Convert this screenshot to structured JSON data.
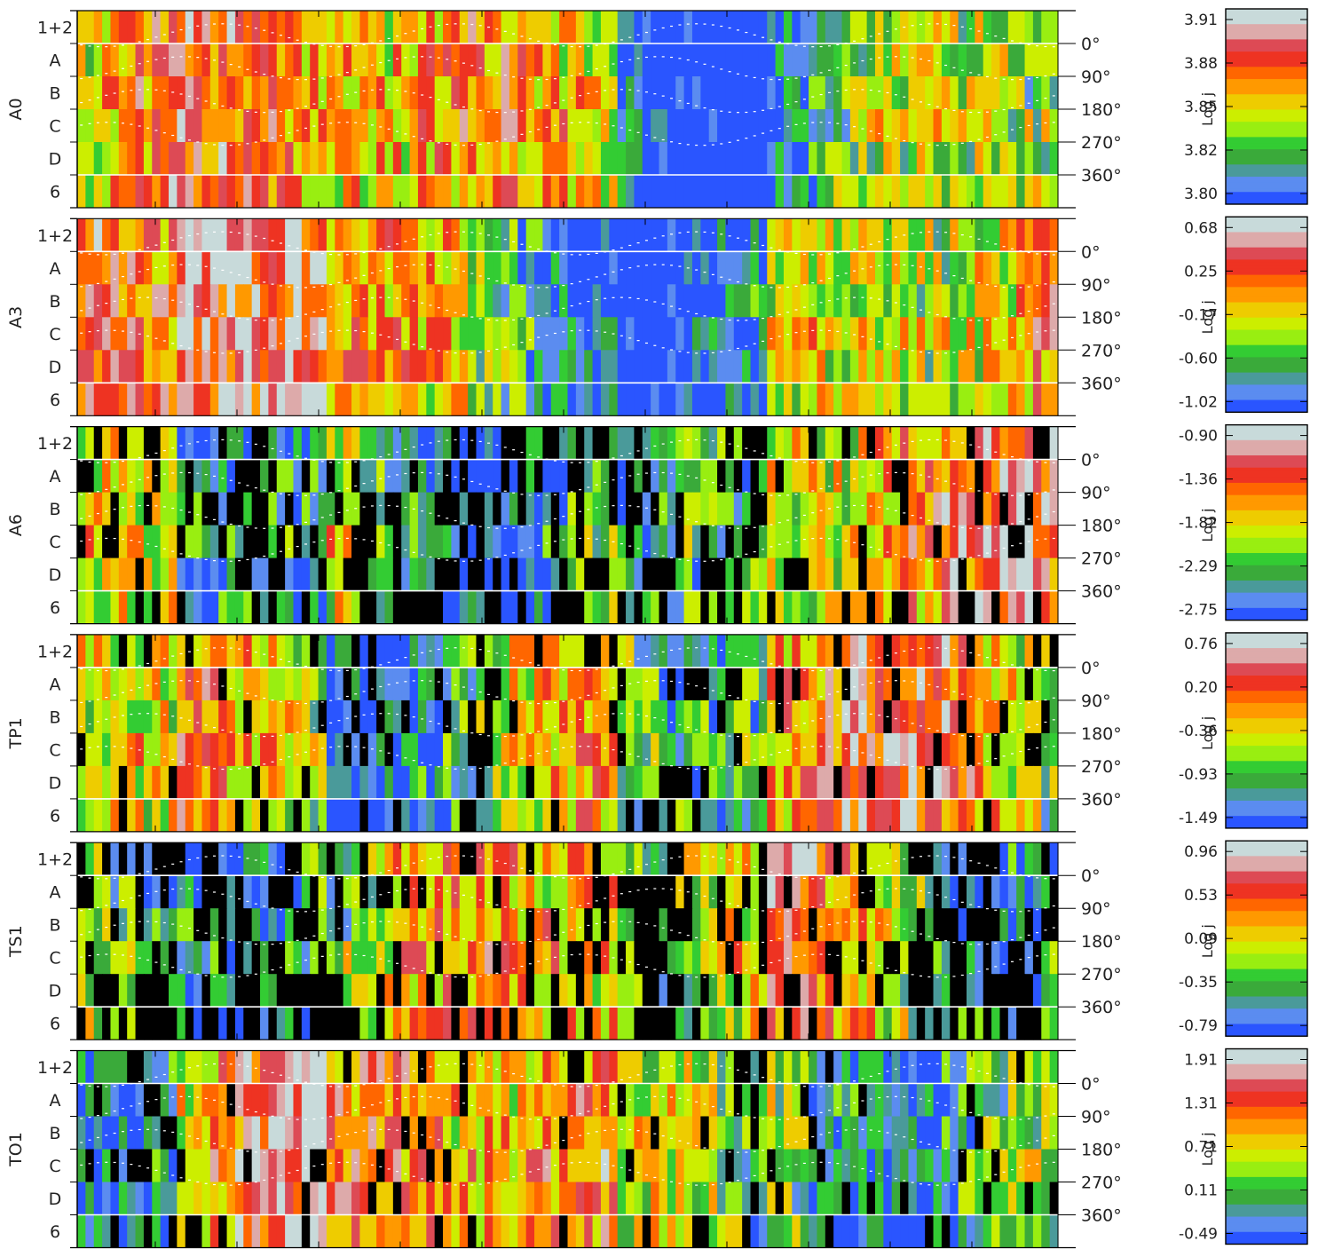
{
  "figure": {
    "rows": [
      "1+2",
      "A",
      "B",
      "C",
      "D",
      "6"
    ],
    "phase_labels": [
      "0°",
      "90°",
      "180°",
      "270°",
      "360°"
    ],
    "colorbar_label": "Log j"
  },
  "colors": {
    "scale": [
      "#2a55ff",
      "#5b8cf0",
      "#4a9a9a",
      "#3aaa3a",
      "#33cc33",
      "#99ee11",
      "#ccee00",
      "#eecc00",
      "#ff9900",
      "#ff6600",
      "#ee3322",
      "#dd4a55",
      "#ddaaaa",
      "#c8dada"
    ],
    "missing": "#000000"
  },
  "chart_data": [
    {
      "type": "heatmap",
      "panel": "A0",
      "colorbar_ticks": [
        "3.91",
        "3.88",
        "3.85",
        "3.82",
        "3.80"
      ],
      "levels": [
        3.8,
        3.91
      ],
      "black_fraction": 0.0,
      "warm_bias": 0.0
    },
    {
      "type": "heatmap",
      "panel": "A3",
      "colorbar_ticks": [
        "0.68",
        "0.25",
        "-0.17",
        "-0.60",
        "-1.02"
      ],
      "levels": [
        -1.02,
        0.68
      ],
      "black_fraction": 0.0,
      "warm_bias": 0.3
    },
    {
      "type": "heatmap",
      "panel": "A6",
      "colorbar_ticks": [
        "-0.90",
        "-1.36",
        "-1.82",
        "-2.29",
        "-2.75"
      ],
      "levels": [
        -2.75,
        -0.9
      ],
      "black_fraction": 0.2,
      "warm_bias": -0.3
    },
    {
      "type": "heatmap",
      "panel": "TP1",
      "colorbar_ticks": [
        "0.76",
        "0.20",
        "-0.36",
        "-0.93",
        "-1.49"
      ],
      "levels": [
        -1.49,
        0.76
      ],
      "black_fraction": 0.12,
      "warm_bias": 0.25
    },
    {
      "type": "heatmap",
      "panel": "TS1",
      "colorbar_ticks": [
        "0.96",
        "0.53",
        "0.09",
        "-0.35",
        "-0.79"
      ],
      "levels": [
        -0.79,
        0.96
      ],
      "black_fraction": 0.25,
      "warm_bias": 0.05
    },
    {
      "type": "heatmap",
      "panel": "TO1",
      "colorbar_ticks": [
        "1.91",
        "1.31",
        "0.71",
        "0.11",
        "-0.49"
      ],
      "levels": [
        -0.49,
        1.91
      ],
      "black_fraction": 0.1,
      "warm_bias": 0.3
    }
  ]
}
